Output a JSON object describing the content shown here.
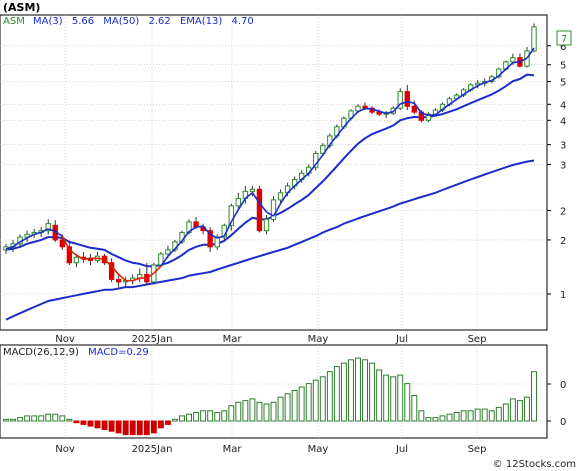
{
  "symbol_title": "(ASM)",
  "watermark": "© 12Stocks.com",
  "legend_price": {
    "symbol": "ASM",
    "ma3_label": "MA(3)",
    "ma3_value": "5.66",
    "ma50_label": "MA(50)",
    "ma50_value": "2.62",
    "ema13_label": "EMA(13)",
    "ema13_value": "4.70"
  },
  "legend_macd": {
    "label": "MACD(26,12,9)",
    "value_label": "MACD=0.29"
  },
  "price_badge": "7",
  "colors": {
    "up_candle": "#2e8b2e",
    "down_candle": "#dd0000",
    "ma_blue": "#1a2ccc",
    "ema_red": "#dd2200",
    "macd_pos": "#2e7d2e",
    "macd_neg": "#cc0000",
    "grid": "#bbbbbb",
    "frame": "#000000"
  },
  "chart_data": [
    {
      "type": "candlestick",
      "title": "(ASM)",
      "x_ticks": [
        "Nov",
        "2025Jan",
        "Mar",
        "May",
        "Jul",
        "Sep"
      ],
      "y_ticks": [
        "1",
        "2",
        "2",
        "3",
        "3",
        "4",
        "4",
        "5",
        "5",
        "6"
      ],
      "y_scale": "log",
      "grid": true,
      "candles": [
        {
          "o": 1.42,
          "h": 1.48,
          "l": 1.38,
          "c": 1.45
        },
        {
          "o": 1.45,
          "h": 1.52,
          "l": 1.4,
          "c": 1.48
        },
        {
          "o": 1.48,
          "h": 1.58,
          "l": 1.44,
          "c": 1.55
        },
        {
          "o": 1.55,
          "h": 1.62,
          "l": 1.5,
          "c": 1.58
        },
        {
          "o": 1.58,
          "h": 1.64,
          "l": 1.54,
          "c": 1.6
        },
        {
          "o": 1.6,
          "h": 1.66,
          "l": 1.55,
          "c": 1.62
        },
        {
          "o": 1.62,
          "h": 1.75,
          "l": 1.58,
          "c": 1.7
        },
        {
          "o": 1.68,
          "h": 1.74,
          "l": 1.5,
          "c": 1.52
        },
        {
          "o": 1.52,
          "h": 1.58,
          "l": 1.42,
          "c": 1.45
        },
        {
          "o": 1.45,
          "h": 1.5,
          "l": 1.28,
          "c": 1.3
        },
        {
          "o": 1.3,
          "h": 1.38,
          "l": 1.26,
          "c": 1.35
        },
        {
          "o": 1.35,
          "h": 1.4,
          "l": 1.3,
          "c": 1.34
        },
        {
          "o": 1.34,
          "h": 1.38,
          "l": 1.28,
          "c": 1.32
        },
        {
          "o": 1.32,
          "h": 1.4,
          "l": 1.3,
          "c": 1.36
        },
        {
          "o": 1.36,
          "h": 1.38,
          "l": 1.28,
          "c": 1.3
        },
        {
          "o": 1.3,
          "h": 1.34,
          "l": 1.14,
          "c": 1.16
        },
        {
          "o": 1.16,
          "h": 1.2,
          "l": 1.1,
          "c": 1.14
        },
        {
          "o": 1.14,
          "h": 1.18,
          "l": 1.1,
          "c": 1.15
        },
        {
          "o": 1.15,
          "h": 1.2,
          "l": 1.12,
          "c": 1.17
        },
        {
          "o": 1.17,
          "h": 1.25,
          "l": 1.14,
          "c": 1.2
        },
        {
          "o": 1.2,
          "h": 1.3,
          "l": 1.12,
          "c": 1.14
        },
        {
          "o": 1.14,
          "h": 1.3,
          "l": 1.12,
          "c": 1.28
        },
        {
          "o": 1.28,
          "h": 1.4,
          "l": 1.26,
          "c": 1.38
        },
        {
          "o": 1.38,
          "h": 1.46,
          "l": 1.34,
          "c": 1.42
        },
        {
          "o": 1.42,
          "h": 1.52,
          "l": 1.4,
          "c": 1.5
        },
        {
          "o": 1.5,
          "h": 1.62,
          "l": 1.48,
          "c": 1.6
        },
        {
          "o": 1.6,
          "h": 1.75,
          "l": 1.58,
          "c": 1.72
        },
        {
          "o": 1.72,
          "h": 1.78,
          "l": 1.64,
          "c": 1.66
        },
        {
          "o": 1.66,
          "h": 1.7,
          "l": 1.58,
          "c": 1.62
        },
        {
          "o": 1.62,
          "h": 1.66,
          "l": 1.4,
          "c": 1.45
        },
        {
          "o": 1.45,
          "h": 1.58,
          "l": 1.42,
          "c": 1.55
        },
        {
          "o": 1.55,
          "h": 1.7,
          "l": 1.52,
          "c": 1.68
        },
        {
          "o": 1.68,
          "h": 1.95,
          "l": 1.62,
          "c": 1.92
        },
        {
          "o": 1.92,
          "h": 2.1,
          "l": 1.88,
          "c": 2.02
        },
        {
          "o": 2.02,
          "h": 2.2,
          "l": 1.95,
          "c": 2.12
        },
        {
          "o": 2.12,
          "h": 2.2,
          "l": 2.05,
          "c": 2.15
        },
        {
          "o": 2.15,
          "h": 2.2,
          "l": 1.6,
          "c": 1.62
        },
        {
          "o": 1.62,
          "h": 1.8,
          "l": 1.58,
          "c": 1.75
        },
        {
          "o": 1.75,
          "h": 2.05,
          "l": 1.72,
          "c": 2.0
        },
        {
          "o": 2.0,
          "h": 2.15,
          "l": 1.95,
          "c": 2.1
        },
        {
          "o": 2.1,
          "h": 2.25,
          "l": 2.05,
          "c": 2.2
        },
        {
          "o": 2.2,
          "h": 2.35,
          "l": 2.15,
          "c": 2.3
        },
        {
          "o": 2.3,
          "h": 2.45,
          "l": 2.25,
          "c": 2.4
        },
        {
          "o": 2.4,
          "h": 2.55,
          "l": 2.35,
          "c": 2.5
        },
        {
          "o": 2.5,
          "h": 2.8,
          "l": 2.45,
          "c": 2.75
        },
        {
          "o": 2.75,
          "h": 2.95,
          "l": 2.7,
          "c": 2.9
        },
        {
          "o": 2.9,
          "h": 3.15,
          "l": 2.85,
          "c": 3.1
        },
        {
          "o": 3.1,
          "h": 3.35,
          "l": 3.05,
          "c": 3.3
        },
        {
          "o": 3.3,
          "h": 3.55,
          "l": 3.25,
          "c": 3.5
        },
        {
          "o": 3.5,
          "h": 3.72,
          "l": 3.45,
          "c": 3.68
        },
        {
          "o": 3.68,
          "h": 3.85,
          "l": 3.62,
          "c": 3.8
        },
        {
          "o": 3.8,
          "h": 3.9,
          "l": 3.7,
          "c": 3.75
        },
        {
          "o": 3.75,
          "h": 3.8,
          "l": 3.6,
          "c": 3.65
        },
        {
          "o": 3.65,
          "h": 3.72,
          "l": 3.55,
          "c": 3.6
        },
        {
          "o": 3.6,
          "h": 3.68,
          "l": 3.5,
          "c": 3.62
        },
        {
          "o": 3.62,
          "h": 3.8,
          "l": 3.58,
          "c": 3.75
        },
        {
          "o": 3.75,
          "h": 4.3,
          "l": 3.7,
          "c": 4.2
        },
        {
          "o": 4.2,
          "h": 4.4,
          "l": 3.7,
          "c": 3.8
        },
        {
          "o": 3.8,
          "h": 3.95,
          "l": 3.6,
          "c": 3.65
        },
        {
          "o": 3.65,
          "h": 3.7,
          "l": 3.4,
          "c": 3.45
        },
        {
          "o": 3.45,
          "h": 3.65,
          "l": 3.4,
          "c": 3.6
        },
        {
          "o": 3.6,
          "h": 3.75,
          "l": 3.55,
          "c": 3.7
        },
        {
          "o": 3.7,
          "h": 3.9,
          "l": 3.65,
          "c": 3.85
        },
        {
          "o": 3.85,
          "h": 4.05,
          "l": 3.8,
          "c": 4.0
        },
        {
          "o": 4.0,
          "h": 4.15,
          "l": 3.95,
          "c": 4.1
        },
        {
          "o": 4.1,
          "h": 4.3,
          "l": 4.05,
          "c": 4.25
        },
        {
          "o": 4.25,
          "h": 4.45,
          "l": 4.2,
          "c": 4.4
        },
        {
          "o": 4.4,
          "h": 4.55,
          "l": 4.3,
          "c": 4.45
        },
        {
          "o": 4.45,
          "h": 4.6,
          "l": 4.35,
          "c": 4.5
        },
        {
          "o": 4.5,
          "h": 4.7,
          "l": 4.45,
          "c": 4.65
        },
        {
          "o": 4.65,
          "h": 4.95,
          "l": 4.6,
          "c": 4.9
        },
        {
          "o": 4.9,
          "h": 5.2,
          "l": 4.85,
          "c": 5.15
        },
        {
          "o": 5.15,
          "h": 5.45,
          "l": 5.05,
          "c": 5.3
        },
        {
          "o": 5.3,
          "h": 5.45,
          "l": 4.95,
          "c": 5.0
        },
        {
          "o": 5.0,
          "h": 5.7,
          "l": 4.95,
          "c": 5.55
        },
        {
          "o": 5.55,
          "h": 6.7,
          "l": 5.5,
          "c": 6.55
        }
      ],
      "ma3": [
        1.43,
        1.45,
        1.5,
        1.54,
        1.58,
        1.6,
        1.64,
        1.61,
        1.56,
        1.42,
        1.37,
        1.33,
        1.34,
        1.34,
        1.33,
        1.27,
        1.2,
        1.15,
        1.15,
        1.17,
        1.17,
        1.21,
        1.27,
        1.36,
        1.43,
        1.51,
        1.61,
        1.66,
        1.67,
        1.58,
        1.54,
        1.56,
        1.72,
        1.87,
        2.02,
        2.1,
        1.96,
        1.84,
        1.79,
        1.95,
        2.1,
        2.2,
        2.3,
        2.4,
        2.55,
        2.72,
        2.92,
        3.1,
        3.3,
        3.49,
        3.66,
        3.74,
        3.73,
        3.67,
        3.62,
        3.66,
        3.86,
        3.92,
        3.88,
        3.63,
        3.57,
        3.58,
        3.72,
        3.85,
        3.98,
        4.12,
        4.25,
        4.37,
        4.47,
        4.53,
        4.68,
        4.9,
        5.12,
        5.15,
        5.28,
        5.66
      ],
      "ema13": [
        1.42,
        1.43,
        1.45,
        1.48,
        1.5,
        1.52,
        1.55,
        1.55,
        1.54,
        1.5,
        1.48,
        1.46,
        1.44,
        1.43,
        1.42,
        1.38,
        1.35,
        1.32,
        1.3,
        1.29,
        1.27,
        1.27,
        1.28,
        1.3,
        1.33,
        1.37,
        1.42,
        1.45,
        1.47,
        1.47,
        1.48,
        1.51,
        1.57,
        1.64,
        1.71,
        1.77,
        1.75,
        1.75,
        1.79,
        1.83,
        1.88,
        1.94,
        2.0,
        2.07,
        2.17,
        2.27,
        2.39,
        2.52,
        2.66,
        2.8,
        2.94,
        3.05,
        3.14,
        3.2,
        3.26,
        3.33,
        3.45,
        3.5,
        3.53,
        3.52,
        3.53,
        3.56,
        3.6,
        3.66,
        3.72,
        3.8,
        3.88,
        3.96,
        4.04,
        4.12,
        4.23,
        4.36,
        4.51,
        4.58,
        4.72,
        4.7
      ],
      "ma50": [
        0.88,
        0.9,
        0.92,
        0.94,
        0.96,
        0.98,
        1.0,
        1.01,
        1.02,
        1.03,
        1.04,
        1.05,
        1.06,
        1.07,
        1.08,
        1.08,
        1.09,
        1.1,
        1.1,
        1.11,
        1.12,
        1.13,
        1.14,
        1.15,
        1.16,
        1.17,
        1.19,
        1.2,
        1.21,
        1.22,
        1.24,
        1.26,
        1.28,
        1.3,
        1.32,
        1.34,
        1.36,
        1.38,
        1.4,
        1.42,
        1.44,
        1.47,
        1.5,
        1.53,
        1.56,
        1.6,
        1.63,
        1.66,
        1.7,
        1.73,
        1.76,
        1.79,
        1.82,
        1.85,
        1.88,
        1.91,
        1.95,
        1.98,
        2.01,
        2.04,
        2.07,
        2.1,
        2.14,
        2.18,
        2.22,
        2.26,
        2.3,
        2.34,
        2.38,
        2.42,
        2.46,
        2.5,
        2.54,
        2.57,
        2.6,
        2.62
      ]
    },
    {
      "type": "bar",
      "title": "MACD(26,12,9)",
      "x_ticks": [
        "Nov",
        "2025Jan",
        "Mar",
        "May",
        "Jul",
        "Sep"
      ],
      "y_ticks": [
        "0",
        "0"
      ],
      "values": [
        0.01,
        0.01,
        0.02,
        0.03,
        0.03,
        0.03,
        0.04,
        0.04,
        0.03,
        0.01,
        -0.01,
        -0.02,
        -0.03,
        -0.04,
        -0.05,
        -0.06,
        -0.07,
        -0.08,
        -0.08,
        -0.08,
        -0.08,
        -0.07,
        -0.04,
        -0.02,
        0.01,
        0.03,
        0.04,
        0.05,
        0.06,
        0.06,
        0.05,
        0.06,
        0.09,
        0.11,
        0.12,
        0.13,
        0.11,
        0.1,
        0.11,
        0.14,
        0.16,
        0.18,
        0.2,
        0.22,
        0.24,
        0.26,
        0.29,
        0.32,
        0.34,
        0.36,
        0.37,
        0.36,
        0.34,
        0.3,
        0.27,
        0.26,
        0.27,
        0.22,
        0.15,
        0.06,
        0.02,
        0.02,
        0.03,
        0.04,
        0.05,
        0.06,
        0.06,
        0.07,
        0.07,
        0.06,
        0.08,
        0.1,
        0.13,
        0.12,
        0.14,
        0.29
      ]
    }
  ]
}
